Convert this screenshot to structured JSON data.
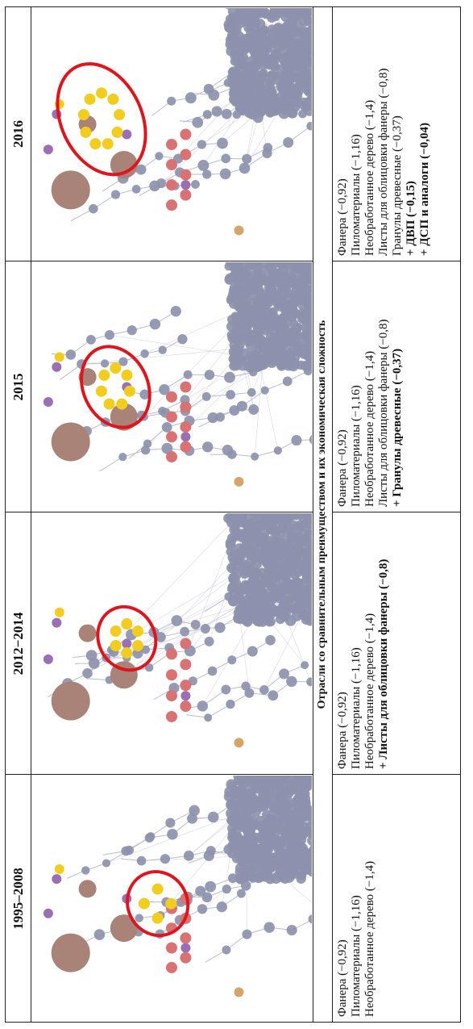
{
  "periods": [
    {
      "label": "1995–2008",
      "items": [
        {
          "text": "Фанера (−0,92)",
          "bold": false
        },
        {
          "text": "Пиломатериалы (−1,16)",
          "bold": false
        },
        {
          "text": "Необработанное дерево (−1,4)",
          "bold": false
        }
      ]
    },
    {
      "label": "2012−2014",
      "items": [
        {
          "text": "Фанера (−0,92)",
          "bold": false
        },
        {
          "text": "Пиломатериалы (−1,16)",
          "bold": false
        },
        {
          "text": "Необработанное дерево (−1,4)",
          "bold": false
        },
        {
          "text": "+ Листы для облицовки фанеры (−0,8)",
          "bold": true
        }
      ]
    },
    {
      "label": "2015",
      "items": [
        {
          "text": "Фанера (−0,92)",
          "bold": false
        },
        {
          "text": "Пиломатериалы (−1,16)",
          "bold": false
        },
        {
          "text": "Необработанное дерево (−1,4)",
          "bold": false
        },
        {
          "text": "Листы для облицовки фанеры (−0,8)",
          "bold": false
        },
        {
          "text": "+ Гранулы древесные (−0,37)",
          "bold": true
        }
      ]
    },
    {
      "label": "2016",
      "items": [
        {
          "text": "Фанера (−0,92)",
          "bold": false
        },
        {
          "text": "Пиломатериалы (−1,16)",
          "bold": false
        },
        {
          "text": "Необработанное дерево (−1,4)",
          "bold": false
        },
        {
          "text": "Листы для облицовки фанеры (−0,8)",
          "bold": false
        },
        {
          "text": "Гранулы древесные (−0,37)",
          "bold": false
        },
        {
          "text": "+ ДВП (−0,15)",
          "bold": true
        },
        {
          "text": "+ ДСП и аналоги (−0,04)",
          "bold": true
        }
      ]
    }
  ],
  "band_title": "Отрасли со сравнительным преимуществом и их экономическая сложность",
  "colors": {
    "node_grey": "#8e91ad",
    "node_brown": "#a98278",
    "node_red": "#d97373",
    "node_purple": "#9b6fb4",
    "node_yellow": "#f2cd1e",
    "node_tan": "#d4a46a",
    "highlight_ring": "#e0141c",
    "edge": "#b9bccc"
  }
}
